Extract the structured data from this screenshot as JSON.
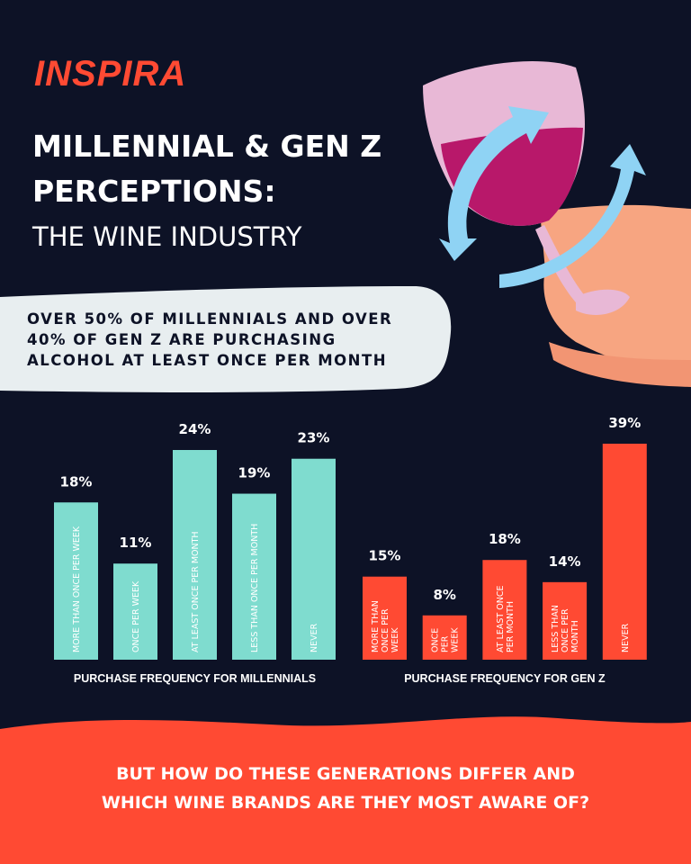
{
  "header": {
    "brand": "INSPIRA",
    "title_lines": [
      "MILLENNIAL & GEN Z",
      "PERCEPTIONS:"
    ],
    "subtitle": "THE WINE INDUSTRY"
  },
  "callout": {
    "lines": [
      "OVER 50% OF MILLENNIALS AND OVER",
      "40% OF GEN Z ARE PURCHASING",
      "ALCOHOL AT LEAST ONCE PER MONTH"
    ]
  },
  "chart_data": [
    {
      "type": "bar",
      "x_label": "PURCHASE FREQUENCY FOR MILLENNIALS",
      "categories": [
        "MORE THAN ONCE PER WEEK",
        "ONCE PER WEEK",
        "AT LEAST ONCE PER MONTH",
        "LESS THAN ONCE PER MONTH",
        "NEVER"
      ],
      "values": [
        18,
        11,
        24,
        19,
        23
      ],
      "value_labels": [
        "18%",
        "11%",
        "24%",
        "19%",
        "23%"
      ],
      "color": "#7fdccf"
    },
    {
      "type": "bar",
      "x_label": "PURCHASE FREQUENCY FOR GEN Z",
      "categories": [
        "MORE THAN ONCE PER WEEK",
        "ONCE PER WEEK",
        "AT LEAST ONCE PER MONTH",
        "LESS THAN ONCE PER MONTH",
        "NEVER"
      ],
      "values": [
        15,
        8,
        18,
        14,
        39
      ],
      "value_labels": [
        "15%",
        "8%",
        "18%",
        "14%",
        "39%"
      ],
      "color": "#ff4a33"
    }
  ],
  "footer": {
    "lines": [
      "BUT HOW DO THESE GENERATIONS DIFFER AND",
      "WHICH WINE BRANDS ARE THEY MOST AWARE OF?"
    ]
  }
}
